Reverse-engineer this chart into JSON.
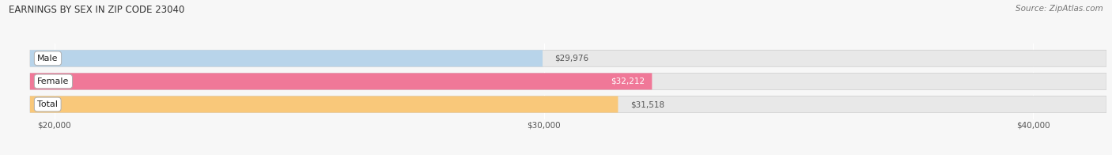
{
  "title": "EARNINGS BY SEX IN ZIP CODE 23040",
  "source": "Source: ZipAtlas.com",
  "categories": [
    "Male",
    "Female",
    "Total"
  ],
  "values": [
    29976,
    32212,
    31518
  ],
  "bar_colors": [
    "#b8d4ea",
    "#f07898",
    "#f9c87a"
  ],
  "bar_bg_color": "#e8e8e8",
  "xlim": [
    19000,
    41500
  ],
  "xmin": 19500,
  "xticks": [
    20000,
    30000,
    40000
  ],
  "xtick_labels": [
    "$20,000",
    "$30,000",
    "$40,000"
  ],
  "value_labels": [
    "$29,976",
    "$32,212",
    "$31,518"
  ],
  "value_label_colors": [
    "#555555",
    "#ffffff",
    "#555555"
  ],
  "bar_height": 0.72,
  "figsize": [
    14.06,
    1.96
  ],
  "dpi": 100,
  "bg_color": "#f7f7f7",
  "title_fontsize": 8.5,
  "source_fontsize": 7.5,
  "tick_fontsize": 7.5,
  "label_fontsize": 8,
  "value_fontsize": 7.5
}
